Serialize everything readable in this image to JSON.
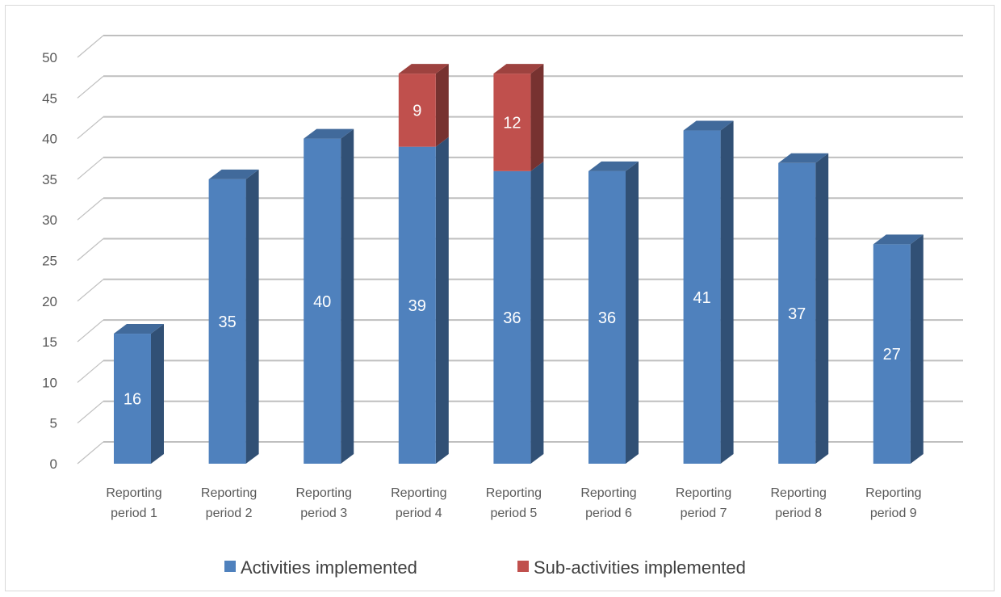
{
  "chart_data": {
    "type": "bar",
    "stacked": true,
    "style": "3d-column",
    "categories": [
      [
        "Reporting",
        "period 1"
      ],
      [
        "Reporting",
        "period 2"
      ],
      [
        "Reporting",
        "period 3"
      ],
      [
        "Reporting",
        "period 4"
      ],
      [
        "Reporting",
        "period 5"
      ],
      [
        "Reporting",
        "period 6"
      ],
      [
        "Reporting",
        "period 7"
      ],
      [
        "Reporting",
        "period 8"
      ],
      [
        "Reporting",
        "period 9"
      ]
    ],
    "series": [
      {
        "name": "Activities implemented",
        "color": "#4f81bd",
        "values": [
          16,
          35,
          40,
          39,
          36,
          36,
          41,
          37,
          27
        ]
      },
      {
        "name": "Sub-activities implemented",
        "color": "#c0504d",
        "values": [
          null,
          null,
          null,
          9,
          12,
          null,
          null,
          null,
          null
        ]
      }
    ],
    "title": "",
    "xlabel": "",
    "ylabel": "",
    "ylim": [
      0,
      50
    ],
    "yticks": [
      0,
      5,
      10,
      15,
      20,
      25,
      30,
      35,
      40,
      45,
      50
    ],
    "grid": true,
    "legend": "bottom"
  }
}
